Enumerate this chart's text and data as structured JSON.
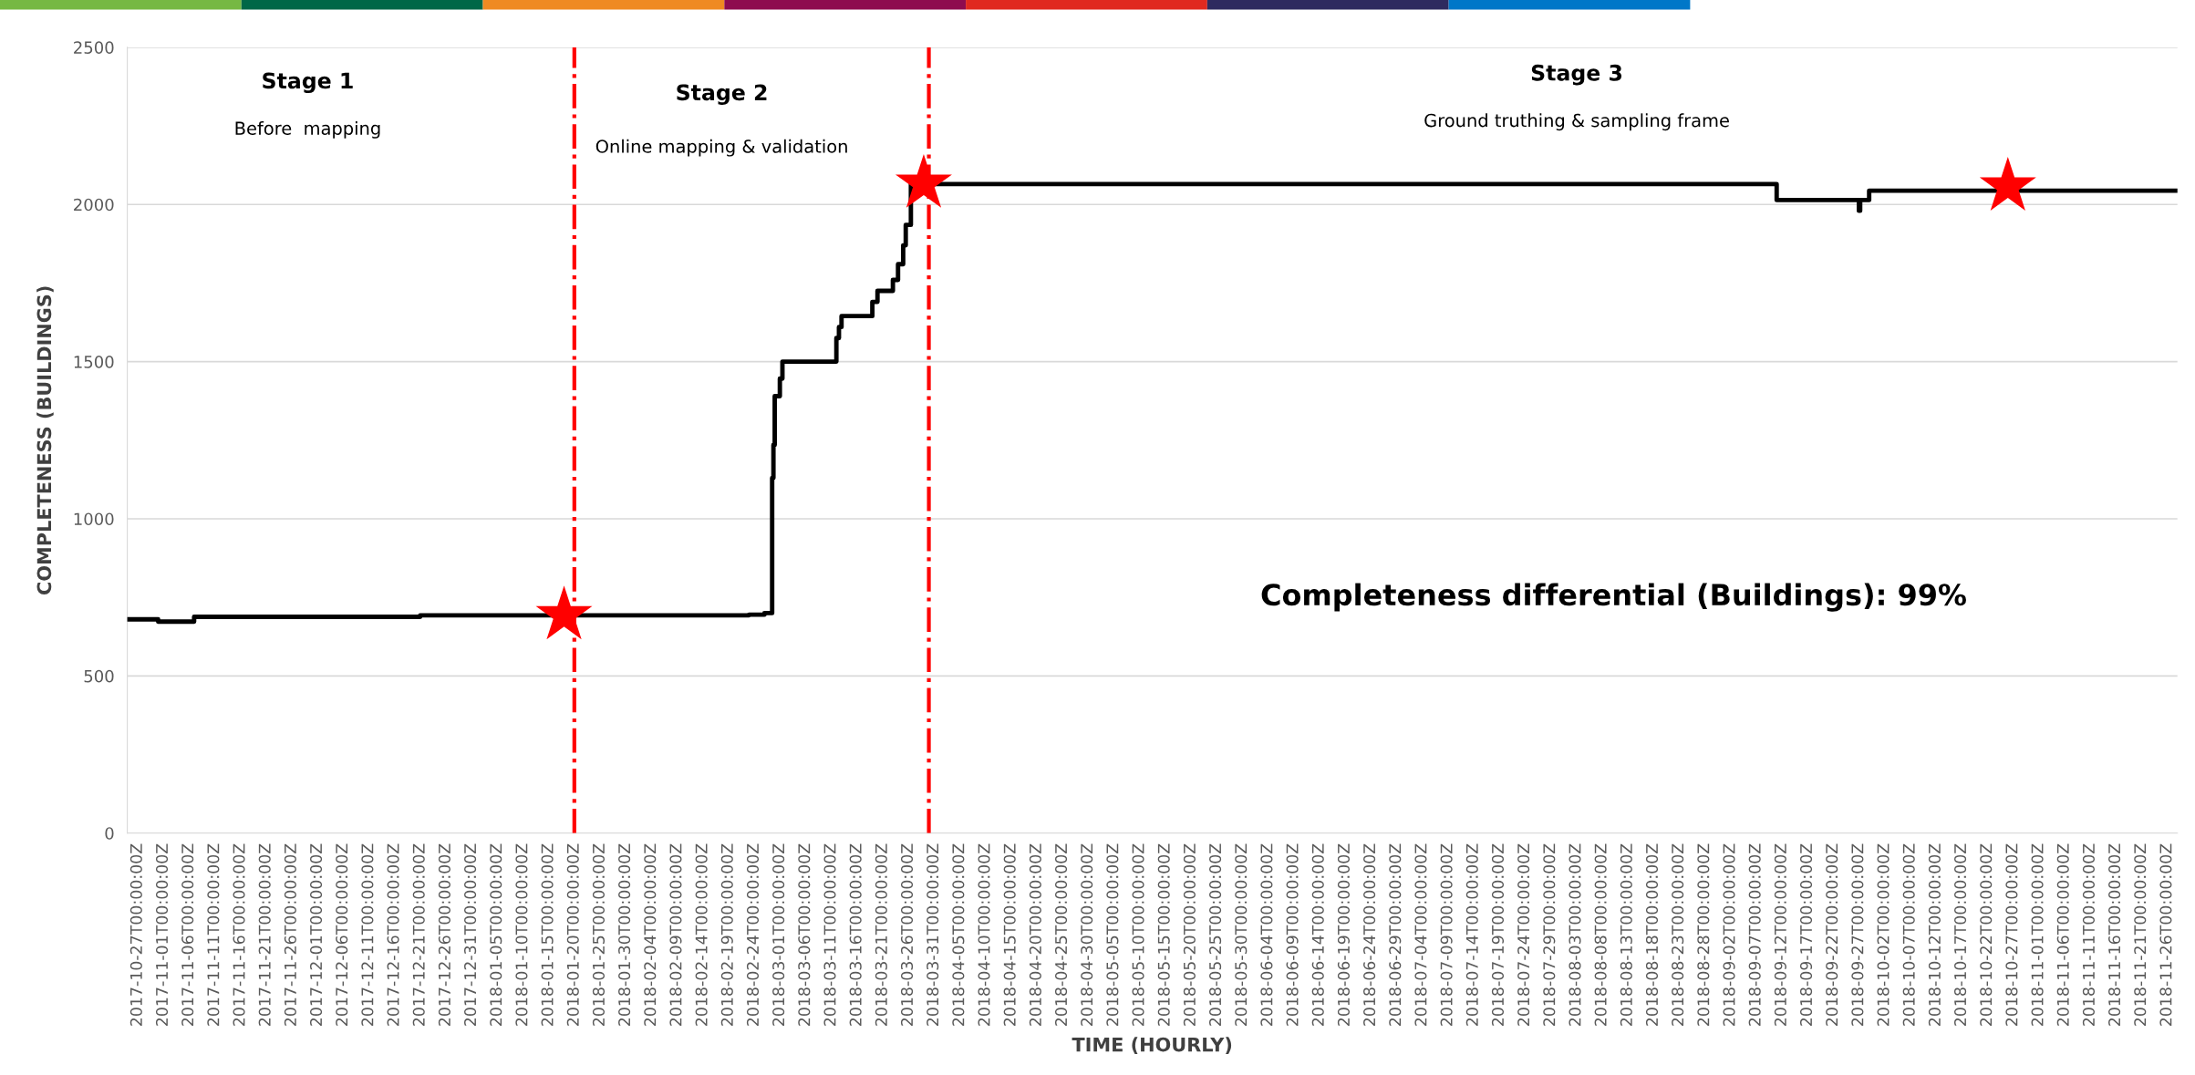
{
  "chart_data": {
    "type": "step",
    "xlabel": "TIME (HOURLY)",
    "ylabel": "COMPLETENESS (BUILDINGS)",
    "series": [
      {
        "color": "#000000",
        "x": [
          "2017-10-25",
          "2017-10-31",
          "2017-11-07",
          "2017-12-21",
          "2018-02-23",
          "2018-02-26",
          "2018-02-27T12:00",
          "2018-02-27T18:00",
          "2018-02-28",
          "2018-03-01",
          "2018-03-01T12:00",
          "2018-03-12",
          "2018-03-12T12:00",
          "2018-03-13",
          "2018-03-19",
          "2018-03-20",
          "2018-03-23",
          "2018-03-24",
          "2018-03-25",
          "2018-03-25T12:00",
          "2018-03-26T12:00",
          "2018-09-11",
          "2018-09-27",
          "2018-09-27T06:00",
          "2018-09-29",
          "2018-11-28"
        ],
        "values": [
          680,
          673,
          688,
          693,
          695,
          700,
          1130,
          1235,
          1390,
          1446,
          1500,
          1575,
          1610,
          1645,
          1690,
          1725,
          1760,
          1810,
          1870,
          1935,
          2065,
          2014,
          1980,
          2014,
          2044,
          2044
        ]
      },
      {
        "type": "scatter",
        "color": "#ff0000",
        "marker": "star",
        "x": [
          "2018-01-18",
          "2018-03-29",
          "2018-10-26"
        ],
        "values": [
          693,
          2066,
          2057
        ]
      }
    ],
    "ref_lines": [
      {
        "axis": "x",
        "value": "2018-01-20",
        "color": "#ff0000",
        "line_style": "dashdot"
      },
      {
        "axis": "x",
        "value": "2018-03-30",
        "color": "#ff0000",
        "line_style": "dashdot"
      }
    ],
    "annotations": [
      "Stage 1",
      "Before  mapping",
      "Stage 2",
      "Online mapping & validation",
      "Stage 3",
      "Ground truthing & sampling frame",
      "Completeness differential (Buildings): 99%"
    ],
    "ylim": [
      0,
      2500
    ],
    "yticks": [
      0,
      500,
      1000,
      1500,
      2000,
      2500
    ],
    "xlim": [
      "2017-10-25",
      "2018-11-28"
    ],
    "xticks": [
      {
        "value": "2017-10-27",
        "label": "2017-10-27T00:00:00Z"
      },
      {
        "value": "2017-11-01",
        "label": "2017-11-01T00:00:00Z"
      },
      {
        "value": "2017-11-06",
        "label": "2017-11-06T00:00:00Z"
      },
      {
        "value": "2017-11-11",
        "label": "2017-11-11T00:00:00Z"
      },
      {
        "value": "2017-11-16",
        "label": "2017-11-16T00:00:00Z"
      },
      {
        "value": "2017-11-21",
        "label": "2017-11-21T00:00:00Z"
      },
      {
        "value": "2017-11-26",
        "label": "2017-11-26T00:00:00Z"
      },
      {
        "value": "2017-12-01",
        "label": "2017-12-01T00:00:00Z"
      },
      {
        "value": "2017-12-06",
        "label": "2017-12-06T00:00:00Z"
      },
      {
        "value": "2017-12-11",
        "label": "2017-12-11T00:00:00Z"
      },
      {
        "value": "2017-12-16",
        "label": "2017-12-16T00:00:00Z"
      },
      {
        "value": "2017-12-21",
        "label": "2017-12-21T00:00:00Z"
      },
      {
        "value": "2017-12-26",
        "label": "2017-12-26T00:00:00Z"
      },
      {
        "value": "2017-12-31",
        "label": "2017-12-31T00:00:00Z"
      },
      {
        "value": "2018-01-05",
        "label": "2018-01-05T00:00:00Z"
      },
      {
        "value": "2018-01-10",
        "label": "2018-01-10T00:00:00Z"
      },
      {
        "value": "2018-01-15",
        "label": "2018-01-15T00:00:00Z"
      },
      {
        "value": "2018-01-20",
        "label": "2018-01-20T00:00:00Z"
      },
      {
        "value": "2018-01-25",
        "label": "2018-01-25T00:00:00Z"
      },
      {
        "value": "2018-01-30",
        "label": "2018-01-30T00:00:00Z"
      },
      {
        "value": "2018-02-04",
        "label": "2018-02-04T00:00:00Z"
      },
      {
        "value": "2018-02-09",
        "label": "2018-02-09T00:00:00Z"
      },
      {
        "value": "2018-02-14",
        "label": "2018-02-14T00:00:00Z"
      },
      {
        "value": "2018-02-19",
        "label": "2018-02-19T00:00:00Z"
      },
      {
        "value": "2018-02-24",
        "label": "2018-02-24T00:00:00Z"
      },
      {
        "value": "2018-03-01",
        "label": "2018-03-01T00:00:00Z"
      },
      {
        "value": "2018-03-06",
        "label": "2018-03-06T00:00:00Z"
      },
      {
        "value": "2018-03-11",
        "label": "2018-03-11T00:00:00Z"
      },
      {
        "value": "2018-03-16",
        "label": "2018-03-16T00:00:00Z"
      },
      {
        "value": "2018-03-21",
        "label": "2018-03-21T00:00:00Z"
      },
      {
        "value": "2018-03-26",
        "label": "2018-03-26T00:00:00Z"
      },
      {
        "value": "2018-03-31",
        "label": "2018-03-31T00:00:00Z"
      },
      {
        "value": "2018-04-05",
        "label": "2018-04-05T00:00:00Z"
      },
      {
        "value": "2018-04-10",
        "label": "2018-04-10T00:00:00Z"
      },
      {
        "value": "2018-04-15",
        "label": "2018-04-15T00:00:00Z"
      },
      {
        "value": "2018-04-20",
        "label": "2018-04-20T00:00:00Z"
      },
      {
        "value": "2018-04-25",
        "label": "2018-04-25T00:00:00Z"
      },
      {
        "value": "2018-04-30",
        "label": "2018-04-30T00:00:00Z"
      },
      {
        "value": "2018-05-05",
        "label": "2018-05-05T00:00:00Z"
      },
      {
        "value": "2018-05-10",
        "label": "2018-05-10T00:00:00Z"
      },
      {
        "value": "2018-05-15",
        "label": "2018-05-15T00:00:00Z"
      },
      {
        "value": "2018-05-20",
        "label": "2018-05-20T00:00:00Z"
      },
      {
        "value": "2018-05-25",
        "label": "2018-05-25T00:00:00Z"
      },
      {
        "value": "2018-05-30",
        "label": "2018-05-30T00:00:00Z"
      },
      {
        "value": "2018-06-04",
        "label": "2018-06-04T00:00:00Z"
      },
      {
        "value": "2018-06-09",
        "label": "2018-06-09T00:00:00Z"
      },
      {
        "value": "2018-06-14",
        "label": "2018-06-14T00:00:00Z"
      },
      {
        "value": "2018-06-19",
        "label": "2018-06-19T00:00:00Z"
      },
      {
        "value": "2018-06-24",
        "label": "2018-06-24T00:00:00Z"
      },
      {
        "value": "2018-06-29",
        "label": "2018-06-29T00:00:00Z"
      },
      {
        "value": "2018-07-04",
        "label": "2018-07-04T00:00:00Z"
      },
      {
        "value": "2018-07-09",
        "label": "2018-07-09T00:00:00Z"
      },
      {
        "value": "2018-07-14",
        "label": "2018-07-14T00:00:00Z"
      },
      {
        "value": "2018-07-19",
        "label": "2018-07-19T00:00:00Z"
      },
      {
        "value": "2018-07-24",
        "label": "2018-07-24T00:00:00Z"
      },
      {
        "value": "2018-07-29",
        "label": "2018-07-29T00:00:00Z"
      },
      {
        "value": "2018-08-03",
        "label": "2018-08-03T00:00:00Z"
      },
      {
        "value": "2018-08-08",
        "label": "2018-08-08T00:00:00Z"
      },
      {
        "value": "2018-08-13",
        "label": "2018-08-13T00:00:00Z"
      },
      {
        "value": "2018-08-18",
        "label": "2018-08-18T00:00:00Z"
      },
      {
        "value": "2018-08-23",
        "label": "2018-08-23T00:00:00Z"
      },
      {
        "value": "2018-08-28",
        "label": "2018-08-28T00:00:00Z"
      },
      {
        "value": "2018-09-02",
        "label": "2018-09-02T00:00:00Z"
      },
      {
        "value": "2018-09-07",
        "label": "2018-09-07T00:00:00Z"
      },
      {
        "value": "2018-09-12",
        "label": "2018-09-12T00:00:00Z"
      },
      {
        "value": "2018-09-17",
        "label": "2018-09-17T00:00:00Z"
      },
      {
        "value": "2018-09-22",
        "label": "2018-09-22T00:00:00Z"
      },
      {
        "value": "2018-09-27",
        "label": "2018-09-27T00:00:00Z"
      },
      {
        "value": "2018-10-02",
        "label": "2018-10-02T00:00:00Z"
      },
      {
        "value": "2018-10-07",
        "label": "2018-10-07T00:00:00Z"
      },
      {
        "value": "2018-10-12",
        "label": "2018-10-12T00:00:00Z"
      },
      {
        "value": "2018-10-17",
        "label": "2018-10-17T00:00:00Z"
      },
      {
        "value": "2018-10-22",
        "label": "2018-10-22T00:00:00Z"
      },
      {
        "value": "2018-10-27",
        "label": "2018-10-27T00:00:00Z"
      },
      {
        "value": "2018-11-01",
        "label": "2018-11-01T00:00:00Z"
      },
      {
        "value": "2018-11-06",
        "label": "2018-11-06T00:00:00Z"
      },
      {
        "value": "2018-11-11",
        "label": "2018-11-11T00:00:00Z"
      },
      {
        "value": "2018-11-16",
        "label": "2018-11-16T00:00:00Z"
      },
      {
        "value": "2018-11-21",
        "label": "2018-11-21T00:00:00Z"
      },
      {
        "value": "2018-11-26",
        "label": "2018-11-26T00:00:00Z"
      }
    ],
    "grid": "y",
    "legend": false
  }
}
